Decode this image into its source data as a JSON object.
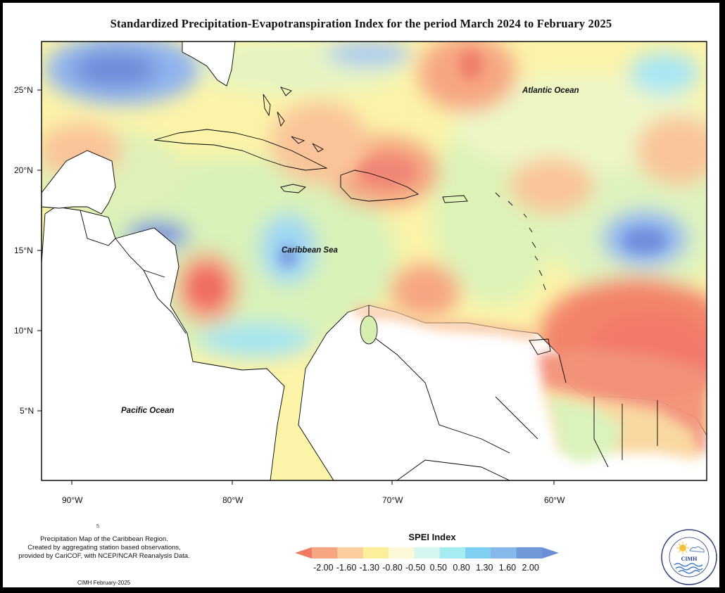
{
  "title": "Standardized Precipitation-Evapotranspiration Index for the period March 2024 to February 2025",
  "map": {
    "lat_labels": [
      "25°N",
      "20°N",
      "15°N",
      "10°N",
      "5°N"
    ],
    "lon_labels": [
      "90°W",
      "80°W",
      "70°W",
      "60°W"
    ],
    "labels": {
      "atlantic": "Atlantic Ocean",
      "caribbean": "Caribbean Sea",
      "pacific": "Pacific Ocean"
    }
  },
  "footnote": {
    "line1": "Precipitation Map of the Caribbean Region.",
    "line2": "Created by aggregating station based observations,",
    "line3": "provided by CariCOF, with NCEP/NCAR Reanalysis Data."
  },
  "tiny_mark": "5",
  "credit": "CIMH February-2025",
  "legend": {
    "title": "SPEI Index",
    "ticks": [
      "-2.00",
      "-1.60",
      "-1.30",
      "-0.80",
      "-0.50",
      "0.50",
      "0.80",
      "1.30",
      "1.60",
      "2.00"
    ],
    "colors": [
      "#f07a62",
      "#f6a683",
      "#fbcd9e",
      "#fcef9c",
      "#fbf8d8",
      "#d6f6f2",
      "#a4ecf0",
      "#7fd0f0",
      "#86b8ec",
      "#6f99d8",
      "#6a8fd8"
    ]
  },
  "logo": {
    "name": "CIMH",
    "ring_text": "Caribbean Institute for Meteorology and Hydrology"
  }
}
